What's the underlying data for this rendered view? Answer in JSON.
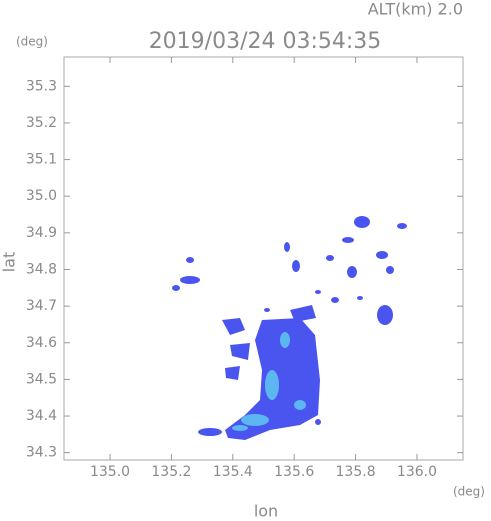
{
  "chart_data": {
    "type": "radar-map",
    "title": "2019/03/24 03:54:35",
    "subtitle": "ALT(km) 2.0",
    "x_label": "lon",
    "y_label": "lat",
    "x_unit": "(deg)",
    "y_unit": "(deg)",
    "xlim": [
      134.85,
      136.15
    ],
    "xticks": [
      {
        "value": 135,
        "label": "135.0"
      },
      135.2,
      135.4,
      135.6,
      135.8,
      {
        "value": 136,
        "label": "136.0"
      }
    ],
    "ylim": [
      34.28,
      35.38
    ],
    "yticks": [
      34.3,
      34.4,
      34.5,
      34.6,
      34.7,
      34.8,
      34.9,
      {
        "value": 35,
        "label": "35.0"
      },
      35.1,
      35.2,
      35.3
    ]
  }
}
